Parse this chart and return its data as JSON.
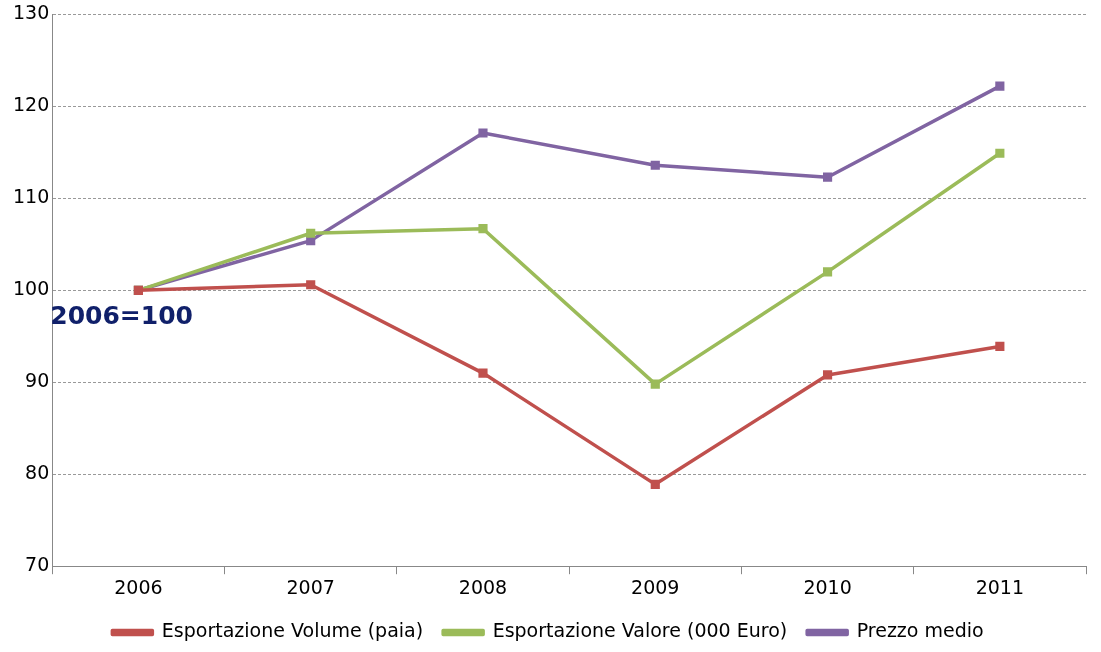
{
  "chart_data": {
    "type": "line",
    "categories": [
      "2006",
      "2007",
      "2008",
      "2009",
      "2010",
      "2011"
    ],
    "series": [
      {
        "name": "Esportazione Volume (paia)",
        "color": "#c0504d",
        "values": [
          100,
          100.6,
          91.0,
          78.9,
          90.8,
          93.9
        ]
      },
      {
        "name": "Esportazione Valore (000 Euro)",
        "color": "#9bbb59",
        "values": [
          100,
          106.2,
          106.7,
          89.8,
          102.0,
          114.9
        ]
      },
      {
        "name": "Prezzo medio",
        "color": "#8064a2",
        "values": [
          100,
          105.4,
          117.1,
          113.6,
          112.3,
          122.2
        ]
      }
    ],
    "ylim": [
      70,
      130
    ],
    "yticks": [
      70,
      80,
      90,
      100,
      110,
      120,
      130
    ],
    "grid": "y",
    "legend": "bottom",
    "marker": "square",
    "line_style": "solid",
    "annotations": [
      "2006=100"
    ]
  }
}
